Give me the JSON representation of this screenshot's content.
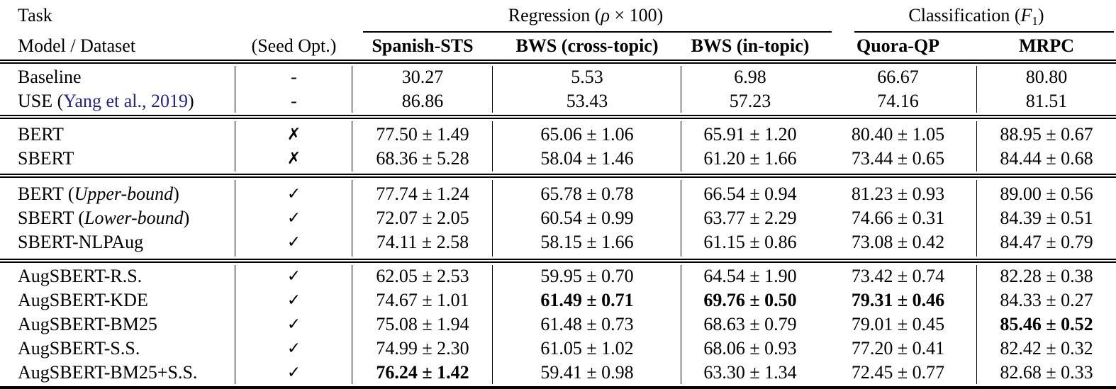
{
  "page": {
    "background": "#ffffff",
    "text_color": "#000000",
    "citation_color": "#22228c"
  },
  "header": {
    "task_label": "Task",
    "regression": {
      "pre": "Regression (",
      "rho": "ρ",
      "post": " × 100)"
    },
    "classification": {
      "pre": "Classification (",
      "f": "F",
      "sub": "1",
      "post": ")"
    },
    "model_dataset_label": "Model / Dataset",
    "seed_opt_label": "(Seed Opt.)",
    "dataset_columns": [
      "Spanish-STS",
      "BWS (cross-topic)",
      "BWS (in-topic)",
      "Quora-QP",
      "MRPC"
    ]
  },
  "marks": {
    "dash": "-",
    "cross": "✗",
    "check": "✓"
  },
  "groups": [
    {
      "rows": [
        {
          "model": {
            "text": "Baseline"
          },
          "seed": "dash",
          "cells": [
            {
              "v": "30.27"
            },
            {
              "v": "5.53"
            },
            {
              "v": "6.98"
            },
            {
              "v": "66.67"
            },
            {
              "v": "80.80"
            }
          ]
        },
        {
          "model": {
            "text": "USE (",
            "cite": "Yang et al., 2019",
            "post": ")"
          },
          "seed": "dash",
          "cells": [
            {
              "v": "86.86"
            },
            {
              "v": "53.43"
            },
            {
              "v": "57.23"
            },
            {
              "v": "74.16"
            },
            {
              "v": "81.51"
            }
          ]
        }
      ]
    },
    {
      "rows": [
        {
          "model": {
            "text": "BERT"
          },
          "seed": "cross",
          "cells": [
            {
              "v": "77.50 ± 1.49"
            },
            {
              "v": "65.06 ± 1.06"
            },
            {
              "v": "65.91 ± 1.20"
            },
            {
              "v": "80.40 ± 1.05"
            },
            {
              "v": "88.95 ± 0.67"
            }
          ]
        },
        {
          "model": {
            "text": "SBERT"
          },
          "seed": "cross",
          "cells": [
            {
              "v": "68.36 ± 5.28"
            },
            {
              "v": "58.04 ± 1.46"
            },
            {
              "v": "61.20 ± 1.66"
            },
            {
              "v": "73.44 ± 0.65"
            },
            {
              "v": "84.44 ± 0.68"
            }
          ]
        }
      ]
    },
    {
      "rows": [
        {
          "model": {
            "text": "BERT (",
            "italic": "Upper-bound",
            "post": ")"
          },
          "seed": "check",
          "cells": [
            {
              "v": "77.74 ± 1.24"
            },
            {
              "v": "65.78 ± 0.78"
            },
            {
              "v": "66.54 ± 0.94"
            },
            {
              "v": "81.23 ± 0.93"
            },
            {
              "v": "89.00 ± 0.56"
            }
          ]
        },
        {
          "model": {
            "text": "SBERT (",
            "italic": "Lower-bound",
            "post": ")"
          },
          "seed": "check",
          "cells": [
            {
              "v": "72.07 ± 2.05"
            },
            {
              "v": "60.54 ± 0.99"
            },
            {
              "v": "63.77 ± 2.29"
            },
            {
              "v": "74.66 ± 0.31"
            },
            {
              "v": "84.39 ± 0.51"
            }
          ]
        },
        {
          "model": {
            "text": "SBERT-NLPAug"
          },
          "seed": "check",
          "cells": [
            {
              "v": "74.11 ± 2.58"
            },
            {
              "v": "58.15 ± 1.66"
            },
            {
              "v": "61.15 ± 0.86"
            },
            {
              "v": "73.08 ± 0.42"
            },
            {
              "v": "84.47 ± 0.79"
            }
          ]
        }
      ]
    },
    {
      "rows": [
        {
          "model": {
            "text": "AugSBERT-R.S."
          },
          "seed": "check",
          "cells": [
            {
              "v": "62.05 ± 2.53"
            },
            {
              "v": "59.95 ± 0.70"
            },
            {
              "v": "64.54 ± 1.90"
            },
            {
              "v": "73.42 ± 0.74"
            },
            {
              "v": "82.28 ± 0.38"
            }
          ]
        },
        {
          "model": {
            "text": "AugSBERT-KDE"
          },
          "seed": "check",
          "cells": [
            {
              "v": "74.67 ± 1.01"
            },
            {
              "v": "61.49 ± 0.71",
              "bold": true
            },
            {
              "v": "69.76 ± 0.50",
              "bold": true
            },
            {
              "v": "79.31 ± 0.46",
              "bold": true
            },
            {
              "v": "84.33 ± 0.27"
            }
          ]
        },
        {
          "model": {
            "text": "AugSBERT-BM25"
          },
          "seed": "check",
          "cells": [
            {
              "v": "75.08 ± 1.94"
            },
            {
              "v": "61.48 ± 0.73"
            },
            {
              "v": "68.63 ± 0.79"
            },
            {
              "v": "79.01 ± 0.45"
            },
            {
              "v": "85.46 ± 0.52",
              "bold": true
            }
          ]
        },
        {
          "model": {
            "text": "AugSBERT-S.S."
          },
          "seed": "check",
          "cells": [
            {
              "v": "74.99 ± 2.30"
            },
            {
              "v": "61.05 ± 1.02"
            },
            {
              "v": "68.06 ± 0.93"
            },
            {
              "v": "77.20 ± 0.41"
            },
            {
              "v": "82.42 ± 0.32"
            }
          ]
        },
        {
          "model": {
            "text": "AugSBERT-BM25+S.S."
          },
          "seed": "check",
          "cells": [
            {
              "v": "76.24 ± 1.42",
              "bold": true
            },
            {
              "v": "59.41 ± 0.98"
            },
            {
              "v": "63.30 ± 1.34"
            },
            {
              "v": "72.45 ± 0.77"
            },
            {
              "v": "82.68 ± 0.33"
            }
          ]
        }
      ]
    }
  ]
}
